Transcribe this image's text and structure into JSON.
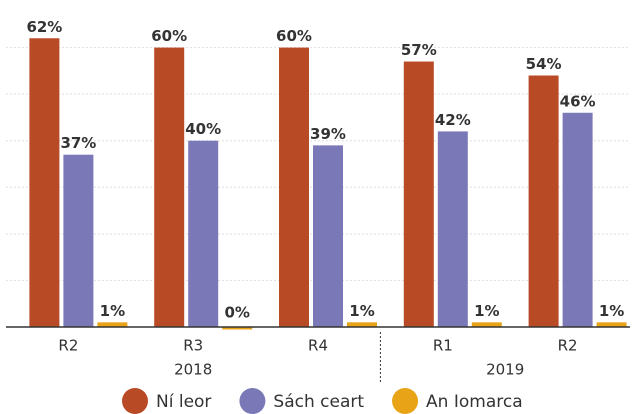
{
  "chart_data": {
    "type": "bar",
    "categories": [
      "R2",
      "R3",
      "R4",
      "R1",
      "R2"
    ],
    "x_groups": [
      {
        "label": "2018",
        "span": 3
      },
      {
        "label": "2019",
        "span": 2
      }
    ],
    "series": [
      {
        "name": "Ní leor",
        "color": "#b94a26",
        "values": [
          62,
          60,
          60,
          57,
          54
        ],
        "value_labels": [
          "62%",
          "60%",
          "60%",
          "57%",
          "54%"
        ]
      },
      {
        "name": "Sách ceart",
        "color": "#7b78b8",
        "values": [
          37,
          40,
          39,
          42,
          46
        ],
        "value_labels": [
          "37%",
          "40%",
          "39%",
          "42%",
          "46%"
        ]
      },
      {
        "name": "An Iomarca",
        "color": "#e8a317",
        "values": [
          1,
          0,
          1,
          1,
          1
        ],
        "value_labels": [
          "1%",
          "0%",
          "1%",
          "1%",
          "1%"
        ]
      }
    ],
    "ylim": [
      0,
      70
    ],
    "yticks": [
      0,
      10,
      20,
      30,
      40,
      50,
      60
    ],
    "grid": true,
    "legend": "bottom"
  }
}
